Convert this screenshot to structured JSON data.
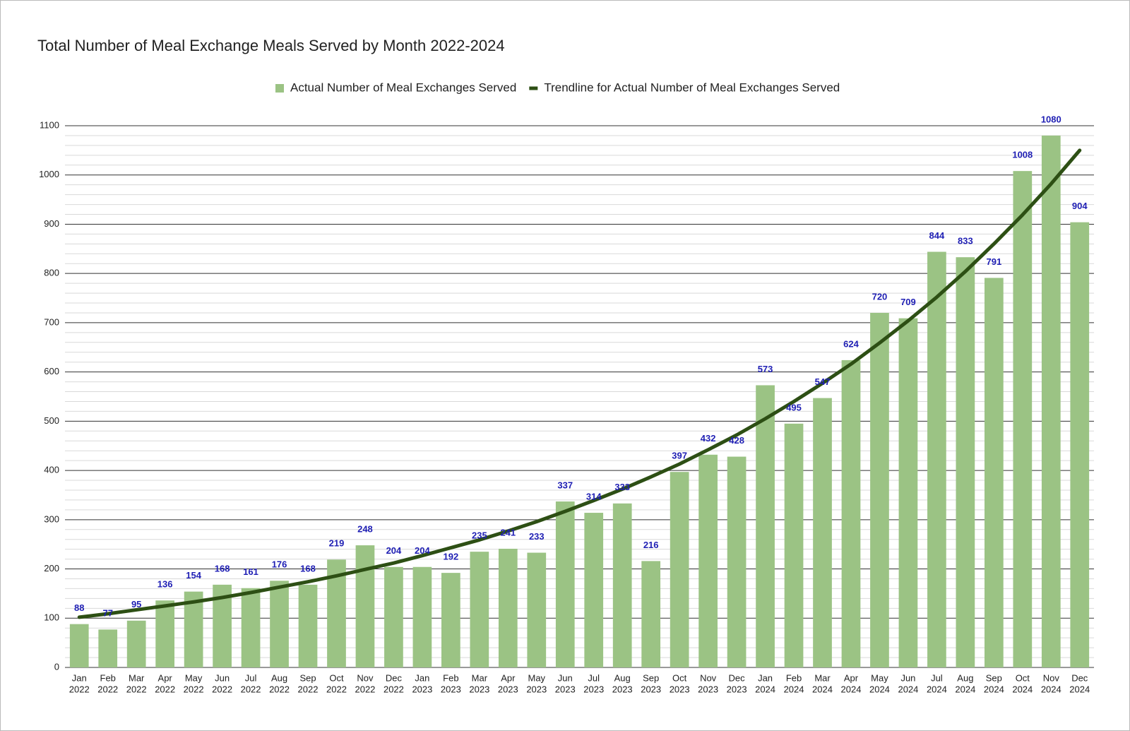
{
  "chart_data": {
    "type": "bar",
    "title": "Total Number of Meal Exchange Meals Served by Month 2022-2024",
    "categories": [
      [
        "Jan",
        "2022"
      ],
      [
        "Feb",
        "2022"
      ],
      [
        "Mar",
        "2022"
      ],
      [
        "Apr",
        "2022"
      ],
      [
        "May",
        "2022"
      ],
      [
        "Jun",
        "2022"
      ],
      [
        "Jul",
        "2022"
      ],
      [
        "Aug",
        "2022"
      ],
      [
        "Sep",
        "2022"
      ],
      [
        "Oct",
        "2022"
      ],
      [
        "Nov",
        "2022"
      ],
      [
        "Dec",
        "2022"
      ],
      [
        "Jan",
        "2023"
      ],
      [
        "Feb",
        "2023"
      ],
      [
        "Mar",
        "2023"
      ],
      [
        "Apr",
        "2023"
      ],
      [
        "May",
        "2023"
      ],
      [
        "Jun",
        "2023"
      ],
      [
        "Jul",
        "2023"
      ],
      [
        "Aug",
        "2023"
      ],
      [
        "Sep",
        "2023"
      ],
      [
        "Oct",
        "2023"
      ],
      [
        "Nov",
        "2023"
      ],
      [
        "Dec",
        "2023"
      ],
      [
        "Jan",
        "2024"
      ],
      [
        "Feb",
        "2024"
      ],
      [
        "Mar",
        "2024"
      ],
      [
        "Apr",
        "2024"
      ],
      [
        "May",
        "2024"
      ],
      [
        "Jun",
        "2024"
      ],
      [
        "Jul",
        "2024"
      ],
      [
        "Aug",
        "2024"
      ],
      [
        "Sep",
        "2024"
      ],
      [
        "Oct",
        "2024"
      ],
      [
        "Nov",
        "2024"
      ],
      [
        "Dec",
        "2024"
      ]
    ],
    "series": [
      {
        "name": "Actual Number of Meal Exchanges Served",
        "type": "bar",
        "color": "#9bc384",
        "values": [
          88,
          77,
          95,
          136,
          154,
          168,
          161,
          176,
          168,
          219,
          248,
          204,
          204,
          192,
          235,
          241,
          233,
          337,
          314,
          333,
          216,
          397,
          432,
          428,
          573,
          495,
          547,
          624,
          720,
          709,
          844,
          833,
          791,
          1008,
          1080,
          904
        ]
      },
      {
        "name": "Trendline for Actual Number of Meal Exchanges Served",
        "type": "line",
        "color": "#2d4f14",
        "values": [
          102,
          109,
          117,
          125,
          133,
          142,
          152,
          163,
          174,
          186,
          199,
          212,
          227,
          243,
          259,
          277,
          296,
          317,
          339,
          362,
          387,
          413,
          442,
          472,
          505,
          540,
          577,
          616,
          659,
          704,
          752,
          804,
          860,
          919,
          982,
          1050
        ]
      }
    ],
    "ylim": [
      0,
      1100
    ],
    "yticks": [
      0,
      100,
      200,
      300,
      400,
      500,
      600,
      700,
      800,
      900,
      1000,
      1100
    ],
    "grid": true,
    "minor_grid_divisions": 5,
    "legend": "top",
    "value_label_color": "#1f1fb4"
  }
}
